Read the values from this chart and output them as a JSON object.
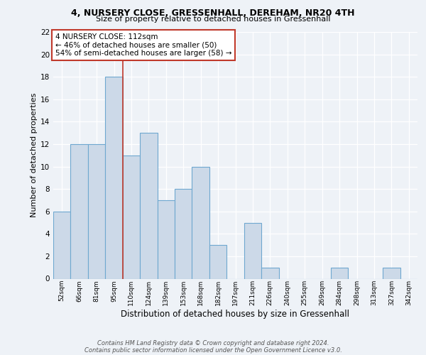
{
  "title1": "4, NURSERY CLOSE, GRESSENHALL, DEREHAM, NR20 4TH",
  "title2": "Size of property relative to detached houses in Gressenhall",
  "xlabel": "Distribution of detached houses by size in Gressenhall",
  "ylabel": "Number of detached properties",
  "categories": [
    "52sqm",
    "66sqm",
    "81sqm",
    "95sqm",
    "110sqm",
    "124sqm",
    "139sqm",
    "153sqm",
    "168sqm",
    "182sqm",
    "197sqm",
    "211sqm",
    "226sqm",
    "240sqm",
    "255sqm",
    "269sqm",
    "284sqm",
    "298sqm",
    "313sqm",
    "327sqm",
    "342sqm"
  ],
  "values": [
    6,
    12,
    12,
    18,
    11,
    13,
    7,
    8,
    10,
    3,
    0,
    5,
    1,
    0,
    0,
    0,
    1,
    0,
    0,
    1,
    0
  ],
  "bar_color": "#ccd9e8",
  "bar_edge_color": "#6fa8d0",
  "ref_line_color": "#c0392b",
  "annotation_text": "4 NURSERY CLOSE: 112sqm\n← 46% of detached houses are smaller (50)\n54% of semi-detached houses are larger (58) →",
  "annotation_box_edge_color": "#c0392b",
  "ylim": [
    0,
    22
  ],
  "yticks": [
    0,
    2,
    4,
    6,
    8,
    10,
    12,
    14,
    16,
    18,
    20,
    22
  ],
  "footer1": "Contains HM Land Registry data © Crown copyright and database right 2024.",
  "footer2": "Contains public sector information licensed under the Open Government Licence v3.0.",
  "bg_color": "#eef2f7"
}
